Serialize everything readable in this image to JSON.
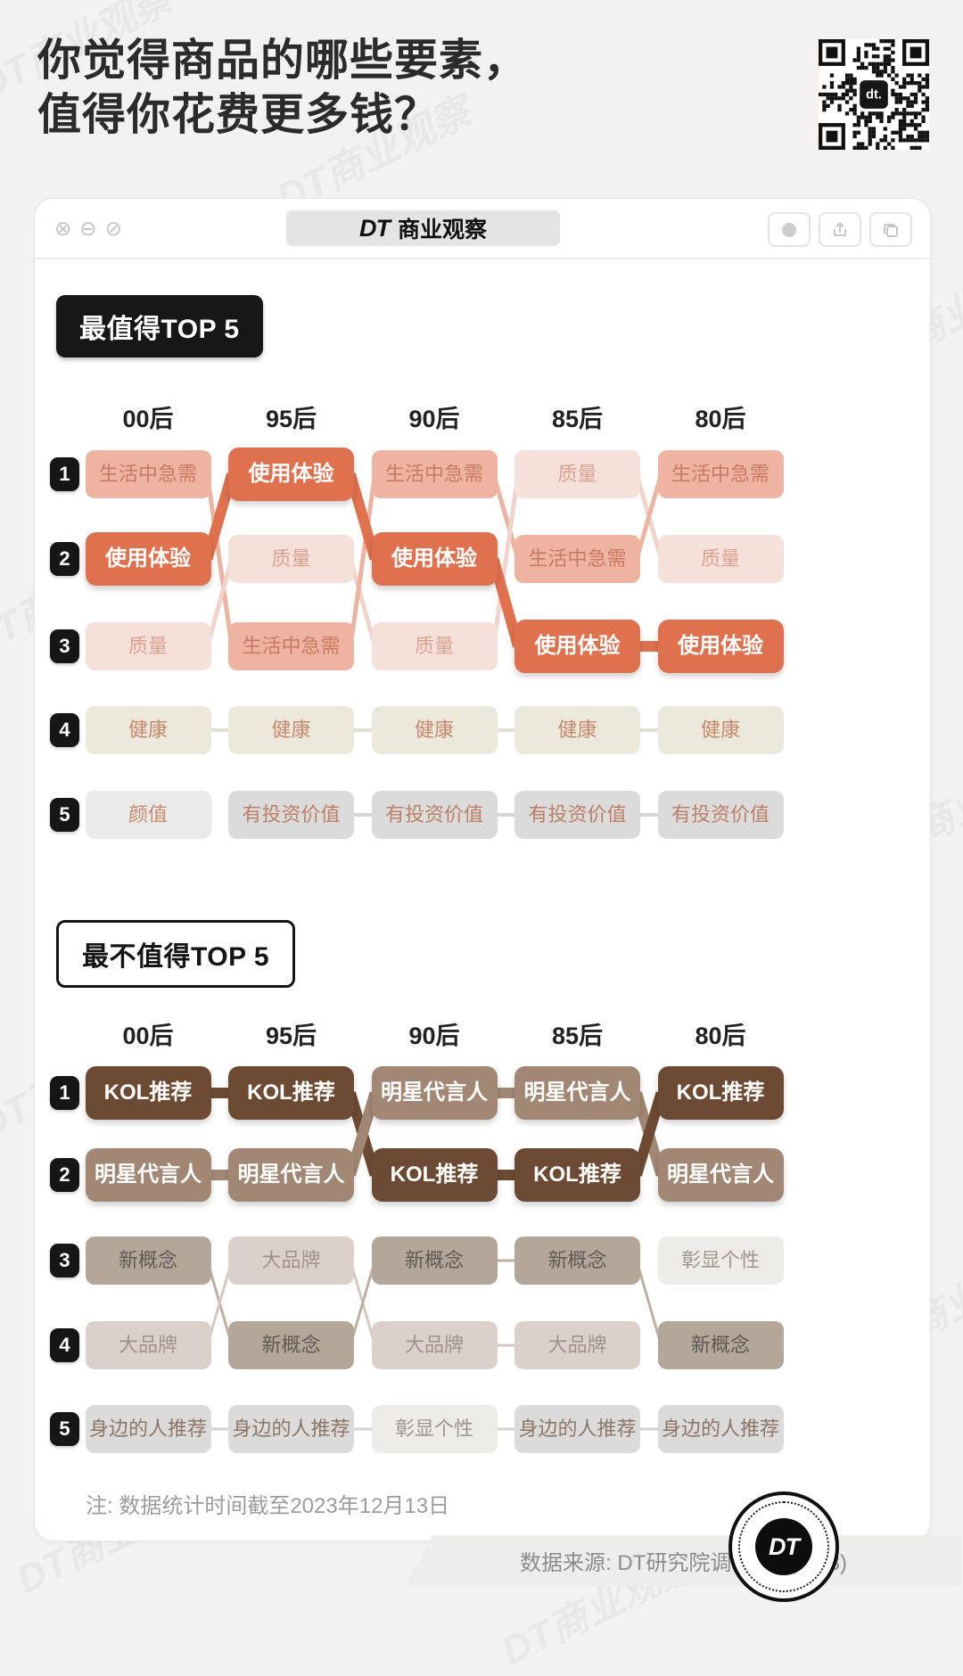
{
  "page": {
    "title_line1": "你觉得商品的哪些要素，",
    "title_line2": "值得你花费更多钱？",
    "watermark": "DT商业观察"
  },
  "window": {
    "brand": "DT",
    "brand_suffix": "商业观察",
    "controls_left": [
      "close-icon",
      "minimize-icon",
      "block-icon"
    ],
    "controls_left_glyphs": [
      "⊗",
      "⊖",
      "⊘"
    ],
    "controls_right": [
      "record-icon",
      "share-icon",
      "copy-icon"
    ]
  },
  "chart_data": [
    {
      "type": "table",
      "subtype": "bump-ranking",
      "title": "最值得TOP 5",
      "badge_style": "dark",
      "columns": [
        "00后",
        "95后",
        "90后",
        "85后",
        "80后"
      ],
      "rank_labels": [
        "1",
        "2",
        "3",
        "4",
        "5"
      ],
      "rows": [
        [
          "生活中急需",
          "使用体验",
          "生活中急需",
          "质量",
          "生活中急需"
        ],
        [
          "使用体验",
          "质量",
          "使用体验",
          "生活中急需",
          "质量"
        ],
        [
          "质量",
          "生活中急需",
          "质量",
          "使用体验",
          "使用体验"
        ],
        [
          "健康",
          "健康",
          "健康",
          "健康",
          "健康"
        ],
        [
          "颜值",
          "有投资价值",
          "有投资价值",
          "有投资价值",
          "有投资价值"
        ]
      ],
      "item_styles": {
        "使用体验": {
          "bg": "#e0714e",
          "text": "#ffffff",
          "pop": true,
          "link": "#e0714e",
          "link_w": 12
        },
        "生活中急需": {
          "bg": "#efb4a1",
          "text": "#c97a63",
          "pop": false,
          "link": "#edb3a1",
          "link_w": 5
        },
        "质量": {
          "bg": "#f5e1da",
          "text": "#dba291",
          "pop": false,
          "link": "#f0d3ca",
          "link_w": 5
        },
        "健康": {
          "bg": "#ece8db",
          "text": "#c8896d",
          "pop": false,
          "link": "#e4dfd0",
          "link_w": 4
        },
        "颜值": {
          "bg": "#eaeaea",
          "text": "#c8896d",
          "pop": false,
          "link": "#dcdcdc",
          "link_w": 4
        },
        "有投资价值": {
          "bg": "#dbdbdb",
          "text": "#bd7f67",
          "pop": false,
          "link": "#d5d5d5",
          "link_w": 4
        }
      }
    },
    {
      "type": "table",
      "subtype": "bump-ranking",
      "title": "最不值得TOP 5",
      "badge_style": "light",
      "columns": [
        "00后",
        "95后",
        "90后",
        "85后",
        "80后"
      ],
      "rank_labels": [
        "1",
        "2",
        "3",
        "4",
        "5"
      ],
      "rows": [
        [
          "KOL推荐",
          "KOL推荐",
          "明星代言人",
          "明星代言人",
          "KOL推荐"
        ],
        [
          "明星代言人",
          "明星代言人",
          "KOL推荐",
          "KOL推荐",
          "明星代言人"
        ],
        [
          "新概念",
          "大品牌",
          "新概念",
          "新概念",
          "彰显个性"
        ],
        [
          "大品牌",
          "新概念",
          "大品牌",
          "大品牌",
          "新概念"
        ],
        [
          "身边的人推荐",
          "身边的人推荐",
          "彰显个性",
          "身边的人推荐",
          "身边的人推荐"
        ]
      ],
      "item_styles": {
        "KOL推荐": {
          "bg": "#6d4a33",
          "text": "#ffffff",
          "pop": true,
          "link": "#6d4a33",
          "link_w": 12
        },
        "明星代言人": {
          "bg": "#a28874",
          "text": "#ffffff",
          "pop": true,
          "link": "#a28874",
          "link_w": 12
        },
        "新概念": {
          "bg": "#b5a69a",
          "text": "#5f5a55",
          "pop": false,
          "link": "#beafa3",
          "link_w": 3
        },
        "大品牌": {
          "bg": "#dcd1ca",
          "text": "#a2938a",
          "pop": false,
          "link": "#d5c9c1",
          "link_w": 3
        },
        "彰显个性": {
          "bg": "#eeece9",
          "text": "#a2938a",
          "pop": false,
          "link": "#e0ddd9",
          "link_w": 3
        },
        "身边的人推荐": {
          "bg": "#dbdbdb",
          "text": "#8f7566",
          "pop": false,
          "link": "#d2d2d2",
          "link_w": 3
        }
      }
    }
  ],
  "footnote": "注: 数据统计时间截至2023年12月13日",
  "source": "数据来源: DT研究院调研 (N=1148)",
  "seal": {
    "text": "DT"
  },
  "qr": {
    "center_label": "dt."
  }
}
